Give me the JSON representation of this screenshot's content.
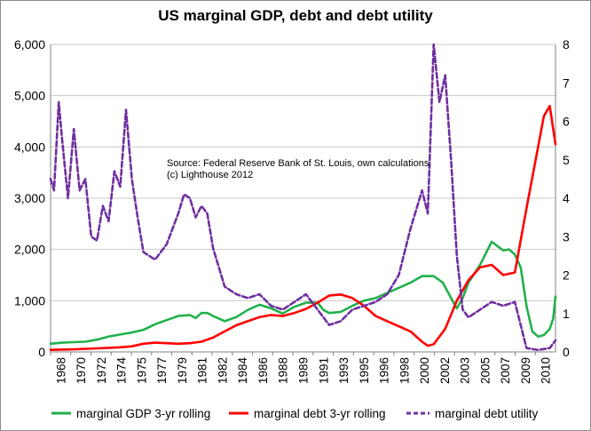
{
  "chart_data": {
    "type": "line",
    "title": "US marginal GDP, debt and debt utility",
    "annotation": [
      "Source: Federal Reserve Bank of St. Louis, own calculations.",
      "(c) Lighthouse 2012"
    ],
    "x_tick_labels": [
      "1968",
      "1970",
      "1972",
      "1974",
      "1975",
      "1977",
      "1979",
      "1981",
      "1982",
      "1984",
      "1986",
      "1988",
      "1989",
      "1991",
      "1993",
      "1995",
      "1996",
      "1998",
      "2000",
      "2002",
      "2003",
      "2005",
      "2007",
      "2009",
      "2010"
    ],
    "xlim": [
      1968,
      2011.5
    ],
    "y_left": {
      "ticks": [
        "0",
        "1,000",
        "2,000",
        "3,000",
        "4,000",
        "5,000",
        "6,000"
      ],
      "lim": [
        0,
        6000
      ]
    },
    "y_right": {
      "ticks": [
        "0",
        "1",
        "2",
        "3",
        "4",
        "5",
        "6",
        "7",
        "8"
      ],
      "lim": [
        0,
        8
      ]
    },
    "grid": "horizontal",
    "legend_position": "bottom",
    "series": [
      {
        "name": "marginal GDP 3-yr rolling",
        "color": "#22b14c",
        "axis": "left",
        "points": [
          [
            1968,
            160
          ],
          [
            1969,
            180
          ],
          [
            1970,
            190
          ],
          [
            1971,
            200
          ],
          [
            1972,
            240
          ],
          [
            1973,
            300
          ],
          [
            1974,
            340
          ],
          [
            1975,
            380
          ],
          [
            1976,
            430
          ],
          [
            1977,
            540
          ],
          [
            1978,
            620
          ],
          [
            1979,
            700
          ],
          [
            1980,
            720
          ],
          [
            1980.5,
            660
          ],
          [
            1981,
            760
          ],
          [
            1981.5,
            760
          ],
          [
            1982,
            700
          ],
          [
            1983,
            600
          ],
          [
            1984,
            680
          ],
          [
            1985,
            820
          ],
          [
            1986,
            920
          ],
          [
            1987,
            850
          ],
          [
            1988,
            750
          ],
          [
            1989,
            880
          ],
          [
            1990,
            960
          ],
          [
            1991,
            960
          ],
          [
            1991.5,
            820
          ],
          [
            1992,
            760
          ],
          [
            1993,
            780
          ],
          [
            1994,
            900
          ],
          [
            1995,
            1000
          ],
          [
            1996,
            1050
          ],
          [
            1997,
            1150
          ],
          [
            1998,
            1250
          ],
          [
            1999,
            1350
          ],
          [
            2000,
            1480
          ],
          [
            2001,
            1480
          ],
          [
            2001.8,
            1350
          ],
          [
            2002.5,
            1050
          ],
          [
            2003,
            850
          ],
          [
            2003.5,
            1050
          ],
          [
            2004,
            1350
          ],
          [
            2005,
            1700
          ],
          [
            2006,
            2150
          ],
          [
            2007,
            1980
          ],
          [
            2007.5,
            2000
          ],
          [
            2008,
            1900
          ],
          [
            2008.5,
            1650
          ],
          [
            2009,
            900
          ],
          [
            2009.5,
            400
          ],
          [
            2010,
            300
          ],
          [
            2010.5,
            330
          ],
          [
            2011,
            450
          ],
          [
            2011.3,
            650
          ],
          [
            2011.5,
            1080
          ]
        ]
      },
      {
        "name": "marginal debt 3-yr rolling",
        "color": "#ff0000",
        "axis": "left",
        "points": [
          [
            1968,
            40
          ],
          [
            1970,
            50
          ],
          [
            1972,
            70
          ],
          [
            1974,
            90
          ],
          [
            1975,
            110
          ],
          [
            1976,
            160
          ],
          [
            1977,
            180
          ],
          [
            1978,
            170
          ],
          [
            1979,
            160
          ],
          [
            1980,
            170
          ],
          [
            1981,
            200
          ],
          [
            1982,
            280
          ],
          [
            1983,
            400
          ],
          [
            1984,
            520
          ],
          [
            1985,
            600
          ],
          [
            1986,
            680
          ],
          [
            1987,
            720
          ],
          [
            1988,
            700
          ],
          [
            1989,
            760
          ],
          [
            1990,
            840
          ],
          [
            1991,
            960
          ],
          [
            1992,
            1100
          ],
          [
            1993,
            1120
          ],
          [
            1994,
            1050
          ],
          [
            1995,
            900
          ],
          [
            1996,
            700
          ],
          [
            1997,
            600
          ],
          [
            1998,
            500
          ],
          [
            1999,
            400
          ],
          [
            2000,
            200
          ],
          [
            2000.5,
            120
          ],
          [
            2001,
            150
          ],
          [
            2002,
            450
          ],
          [
            2003,
            1000
          ],
          [
            2004,
            1400
          ],
          [
            2005,
            1650
          ],
          [
            2006,
            1700
          ],
          [
            2007,
            1500
          ],
          [
            2008,
            1550
          ],
          [
            2009,
            2800
          ],
          [
            2010,
            4000
          ],
          [
            2010.5,
            4600
          ],
          [
            2011,
            4800
          ],
          [
            2011.5,
            4050
          ]
        ]
      },
      {
        "name": "marginal debt utility",
        "color": "#7030a0",
        "axis": "right",
        "dashed": true,
        "points": [
          [
            1968,
            4.5
          ],
          [
            1968.3,
            4.2
          ],
          [
            1968.7,
            6.5
          ],
          [
            1969,
            5.5
          ],
          [
            1969.5,
            4.0
          ],
          [
            1970,
            5.8
          ],
          [
            1970.5,
            4.2
          ],
          [
            1971,
            4.5
          ],
          [
            1971.5,
            3.0
          ],
          [
            1972,
            2.9
          ],
          [
            1972.5,
            3.8
          ],
          [
            1973,
            3.4
          ],
          [
            1973.5,
            4.7
          ],
          [
            1974,
            4.3
          ],
          [
            1974.5,
            6.3
          ],
          [
            1975,
            4.5
          ],
          [
            1975.5,
            3.5
          ],
          [
            1976,
            2.6
          ],
          [
            1977,
            2.4
          ],
          [
            1978,
            2.8
          ],
          [
            1979,
            3.6
          ],
          [
            1979.5,
            4.1
          ],
          [
            1980,
            4.0
          ],
          [
            1980.5,
            3.5
          ],
          [
            1981,
            3.8
          ],
          [
            1981.5,
            3.6
          ],
          [
            1982,
            2.7
          ],
          [
            1983,
            1.7
          ],
          [
            1984,
            1.5
          ],
          [
            1985,
            1.4
          ],
          [
            1986,
            1.5
          ],
          [
            1987,
            1.2
          ],
          [
            1988,
            1.1
          ],
          [
            1989,
            1.3
          ],
          [
            1990,
            1.5
          ],
          [
            1991,
            1.1
          ],
          [
            1992,
            0.7
          ],
          [
            1993,
            0.8
          ],
          [
            1994,
            1.1
          ],
          [
            1995,
            1.2
          ],
          [
            1996,
            1.3
          ],
          [
            1997,
            1.5
          ],
          [
            1998,
            2.0
          ],
          [
            1999,
            3.2
          ],
          [
            2000,
            4.2
          ],
          [
            2000.5,
            3.6
          ],
          [
            2001,
            8.0
          ],
          [
            2001.5,
            6.5
          ],
          [
            2002,
            7.2
          ],
          [
            2002.5,
            5.0
          ],
          [
            2003,
            2.5
          ],
          [
            2003.5,
            1.1
          ],
          [
            2004,
            0.9
          ],
          [
            2005,
            1.1
          ],
          [
            2006,
            1.3
          ],
          [
            2007,
            1.2
          ],
          [
            2008,
            1.3
          ],
          [
            2009,
            0.1
          ],
          [
            2010,
            0.05
          ],
          [
            2011,
            0.1
          ],
          [
            2011.5,
            0.3
          ]
        ]
      }
    ]
  }
}
